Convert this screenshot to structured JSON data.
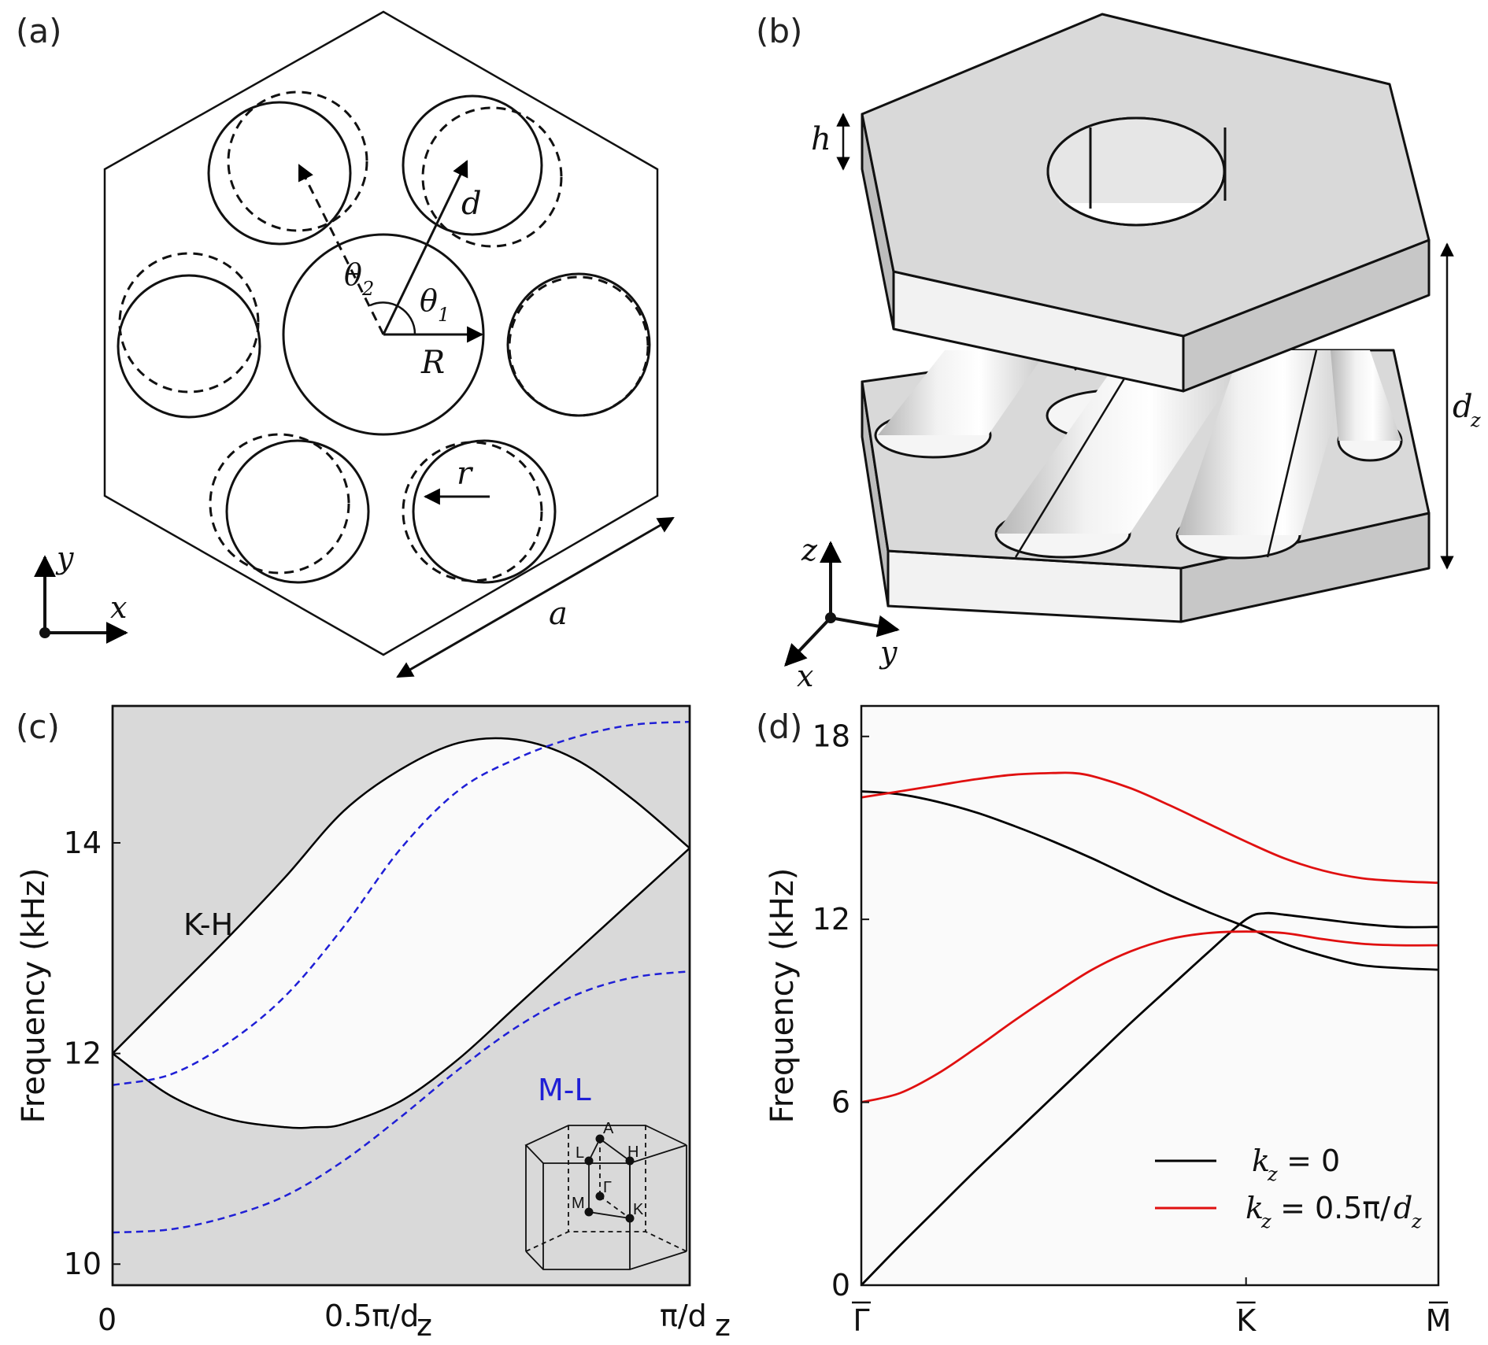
{
  "panels": {
    "a": {
      "label": "(a)",
      "symbols": {
        "d": "d",
        "theta": "θ",
        "theta1_sub": "1",
        "theta2_sub": "2",
        "R": "R",
        "r": "r",
        "a": "a",
        "x": "x",
        "y": "y"
      }
    },
    "b": {
      "label": "(b)",
      "symbols": {
        "h": "h",
        "d": "d",
        "d_sub": "z",
        "x": "x",
        "y": "y",
        "z": "z"
      }
    },
    "c": {
      "label": "(c)",
      "ylabel": "Frequency (kHz)",
      "yticks": [
        "10",
        "12",
        "14"
      ],
      "xticks": [
        {
          "main": "0",
          "sub": ""
        },
        {
          "main": "0.5π/d",
          "sub": "z"
        },
        {
          "main": "π/d",
          "sub": "z"
        }
      ],
      "annotations": {
        "kh": "K-H",
        "ml": "M-L"
      },
      "bz_points": {
        "A": "A",
        "L": "L",
        "H": "H",
        "Gamma": "Γ",
        "M": "M",
        "K": "K"
      },
      "colors": {
        "background": "#d9d9d9",
        "fill": "#fafafa",
        "black": "#000000",
        "blue": "#1f1fd6"
      }
    },
    "d": {
      "label": "(d)",
      "ylabel": "Frequency (kHz)",
      "yticks": [
        "0",
        "6",
        "12",
        "18"
      ],
      "xticks": [
        "Γ",
        "K",
        "M"
      ],
      "legend": {
        "black": {
          "k": "k",
          "sub": "z",
          "rest": " = 0"
        },
        "red": {
          "k": "k",
          "sub": "z",
          "rest": " = 0.5π/",
          "d": "d",
          "dsub": "z"
        }
      },
      "colors": {
        "black": "#000000",
        "red": "#e01010",
        "background": "#fafafa"
      }
    }
  },
  "chart_data": [
    {
      "panel": "c",
      "type": "line",
      "ylabel": "Frequency (kHz)",
      "xlim": [
        0,
        1
      ],
      "ylim": [
        9.8,
        15.3
      ],
      "x_unit": "π/d_z",
      "series": [
        {
          "name": "K-H",
          "color": "#000000",
          "style": "solid",
          "x": [
            0,
            0.1,
            0.2,
            0.3,
            0.4,
            0.5,
            0.6,
            0.7,
            0.8,
            0.9,
            1.0
          ],
          "y": [
            12.0,
            12.55,
            13.1,
            13.68,
            14.3,
            14.7,
            14.95,
            14.98,
            14.8,
            14.42,
            13.95
          ]
        },
        {
          "color": "#000000",
          "style": "solid",
          "x": [
            0,
            0.1,
            0.2,
            0.3,
            0.35,
            0.4,
            0.5,
            0.6,
            0.7,
            0.8,
            0.9,
            1.0
          ],
          "y": [
            12.0,
            11.6,
            11.38,
            11.3,
            11.3,
            11.33,
            11.55,
            11.95,
            12.45,
            12.95,
            13.45,
            13.95
          ]
        },
        {
          "name": "M-L",
          "color": "#1f1fd6",
          "style": "dashed",
          "x": [
            0,
            0.1,
            0.2,
            0.3,
            0.4,
            0.5,
            0.6,
            0.7,
            0.8,
            0.9,
            1.0
          ],
          "y": [
            11.7,
            11.8,
            12.1,
            12.55,
            13.2,
            13.95,
            14.5,
            14.8,
            15.0,
            15.12,
            15.15
          ]
        },
        {
          "color": "#1f1fd6",
          "style": "dashed",
          "x": [
            0,
            0.1,
            0.2,
            0.3,
            0.4,
            0.5,
            0.6,
            0.7,
            0.8,
            0.9,
            1.0
          ],
          "y": [
            10.3,
            10.33,
            10.45,
            10.65,
            10.98,
            11.4,
            11.85,
            12.25,
            12.55,
            12.72,
            12.78
          ]
        }
      ]
    },
    {
      "panel": "d",
      "type": "line",
      "ylabel": "Frequency (kHz)",
      "xlim": [
        0,
        1.5
      ],
      "ylim": [
        0,
        19
      ],
      "categories": [
        "Γ",
        "K",
        "M"
      ],
      "category_positions": [
        0,
        1,
        1.5
      ],
      "series": [
        {
          "name": "k_z = 0",
          "color": "#000000",
          "x": [
            0,
            0.1,
            0.2,
            0.3,
            0.4,
            0.5,
            0.6,
            0.7,
            0.8,
            0.9,
            1.0,
            1.1,
            1.2,
            1.3,
            1.4,
            1.5
          ],
          "y": [
            16.2,
            16.1,
            15.85,
            15.5,
            15.05,
            14.55,
            14.0,
            13.4,
            12.8,
            12.25,
            11.75,
            11.2,
            10.8,
            10.5,
            10.4,
            10.35
          ]
        },
        {
          "color": "#000000",
          "x": [
            0,
            0.1,
            0.2,
            0.3,
            0.4,
            0.5,
            0.6,
            0.7,
            0.8,
            0.9,
            1.0,
            1.05,
            1.1,
            1.2,
            1.3,
            1.4,
            1.5
          ],
          "y": [
            0,
            1.3,
            2.55,
            3.8,
            5.0,
            6.2,
            7.4,
            8.6,
            9.75,
            10.9,
            12.0,
            12.2,
            12.15,
            12.0,
            11.85,
            11.75,
            11.75
          ]
        },
        {
          "name": "k_z = 0.5π/d_z",
          "color": "#e01010",
          "x": [
            0,
            0.1,
            0.2,
            0.3,
            0.4,
            0.5,
            0.55,
            0.6,
            0.7,
            0.8,
            0.9,
            1.0,
            1.1,
            1.2,
            1.3,
            1.4,
            1.5
          ],
          "y": [
            16.0,
            16.2,
            16.4,
            16.6,
            16.75,
            16.8,
            16.8,
            16.7,
            16.3,
            15.75,
            15.15,
            14.55,
            14.0,
            13.6,
            13.35,
            13.25,
            13.2
          ]
        },
        {
          "color": "#e01010",
          "x": [
            0,
            0.1,
            0.2,
            0.3,
            0.4,
            0.5,
            0.6,
            0.7,
            0.8,
            0.9,
            1.0,
            1.1,
            1.2,
            1.3,
            1.4,
            1.5
          ],
          "y": [
            6.0,
            6.3,
            6.95,
            7.8,
            8.7,
            9.55,
            10.35,
            10.95,
            11.35,
            11.55,
            11.6,
            11.55,
            11.35,
            11.2,
            11.15,
            11.15
          ]
        }
      ]
    }
  ]
}
